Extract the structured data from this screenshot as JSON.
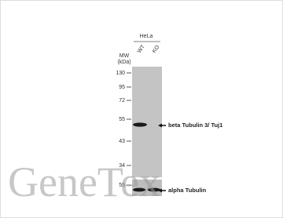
{
  "blot": {
    "cell_line": "HeLa",
    "samples": [
      "WT",
      "KO"
    ],
    "mw_label": [
      "MW",
      "(kDa)"
    ],
    "markers": [
      "130",
      "95",
      "72",
      "55",
      "43",
      "34",
      "55"
    ],
    "targets": [
      "beta Tubulin 3/ Tuj1",
      "alpha Tubulin"
    ],
    "watermark": "GeneTex"
  }
}
